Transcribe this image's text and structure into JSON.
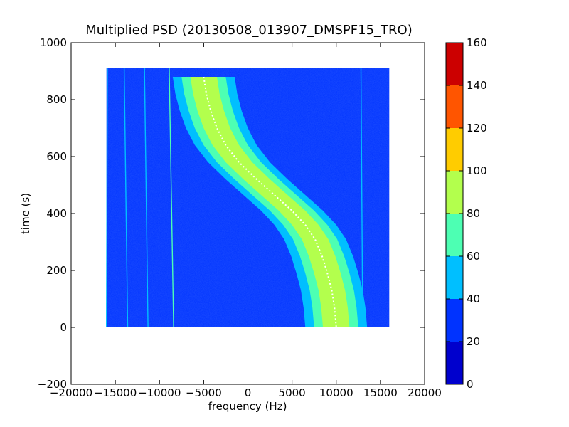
{
  "chart_data": {
    "type": "heatmap",
    "title": "Multiplied PSD (20130508_013907_DMSPF15_TRO)",
    "xlabel": "frequency (Hz)",
    "ylabel": "time (s)",
    "xlim": [
      -20000,
      20000
    ],
    "ylim": [
      -200,
      1000
    ],
    "xticks": [
      -20000,
      -15000,
      -10000,
      -5000,
      0,
      5000,
      10000,
      15000,
      20000
    ],
    "xtick_labels": [
      "−20000",
      "−15000",
      "−10000",
      "−5000",
      "0",
      "5000",
      "10000",
      "15000",
      "20000"
    ],
    "yticks": [
      -200,
      0,
      200,
      400,
      600,
      800,
      1000
    ],
    "ytick_labels": [
      "−200",
      "0",
      "200",
      "400",
      "600",
      "800",
      "1000"
    ],
    "data_extent": {
      "freq": [
        -16000,
        16000
      ],
      "time": [
        0,
        910
      ]
    },
    "background_level": 25,
    "doppler_trace": {
      "description": "central Doppler curve (white dots)",
      "points": [
        [
          -5000,
          880
        ],
        [
          -4700,
          820
        ],
        [
          -4200,
          760
        ],
        [
          -3500,
          700
        ],
        [
          -2500,
          640
        ],
        [
          -1000,
          580
        ],
        [
          1000,
          520
        ],
        [
          3000,
          465
        ],
        [
          5000,
          410
        ],
        [
          6500,
          360
        ],
        [
          7600,
          310
        ],
        [
          8400,
          250
        ],
        [
          9000,
          190
        ],
        [
          9500,
          130
        ],
        [
          9800,
          70
        ],
        [
          10000,
          0
        ]
      ],
      "band_levels": [
        {
          "half_width_hz": 3500,
          "level": 50
        },
        {
          "half_width_hz": 2500,
          "level": 70
        },
        {
          "half_width_hz": 1500,
          "level": 85
        }
      ]
    },
    "faint_lines": [
      {
        "points": [
          [
            -15900,
            910
          ],
          [
            -16000,
            0
          ]
        ],
        "level": 45
      },
      {
        "points": [
          [
            -14000,
            910
          ],
          [
            -13600,
            0
          ]
        ],
        "level": 45
      },
      {
        "points": [
          [
            -11700,
            910
          ],
          [
            -11300,
            0
          ]
        ],
        "level": 45
      },
      {
        "points": [
          [
            -8900,
            910
          ],
          [
            -8400,
            0
          ]
        ],
        "level": 60
      },
      {
        "points": [
          [
            12800,
            910
          ],
          [
            13000,
            0
          ]
        ],
        "level": 45
      }
    ],
    "colorbar": {
      "levels": [
        0,
        20,
        40,
        60,
        80,
        100,
        120,
        140,
        160
      ],
      "tick_labels": [
        "0",
        "20",
        "40",
        "60",
        "80",
        "100",
        "120",
        "140",
        "160"
      ],
      "colors": [
        "#0000cd",
        "#0033ff",
        "#00bfff",
        "#4dffb3",
        "#b3ff4d",
        "#ffcc00",
        "#ff5500",
        "#cc0000"
      ]
    },
    "grid": false,
    "legend": "none"
  }
}
